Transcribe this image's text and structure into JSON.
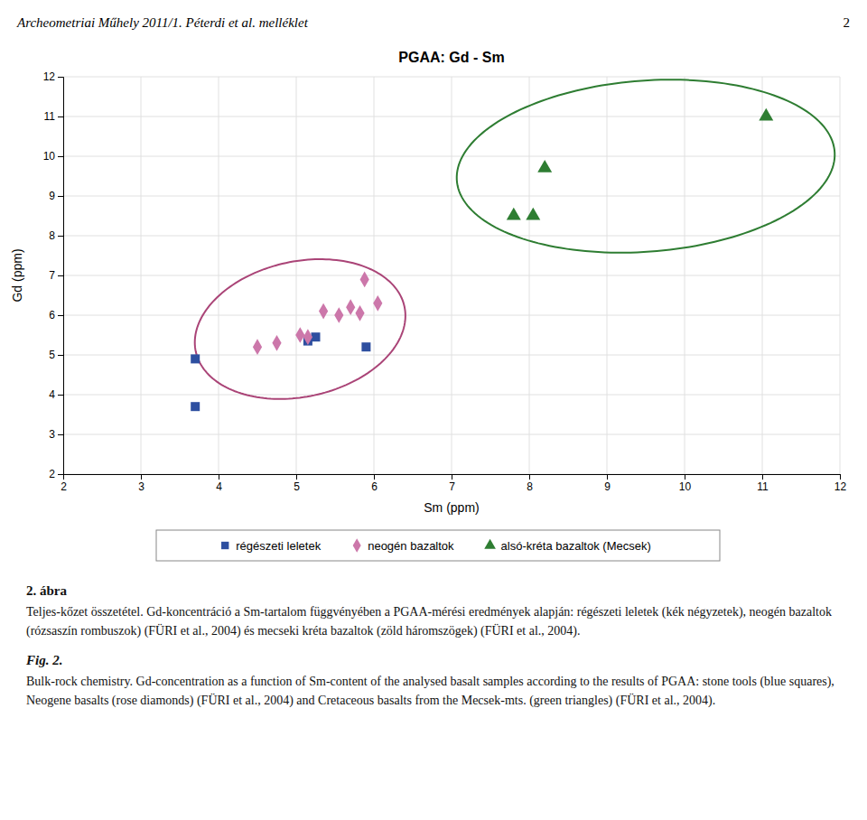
{
  "header_text": "Archeometriai Műhely 2011/1. Péterdi et al. melléklet",
  "header_right": "2",
  "caption_abra": "2. ábra",
  "caption_hungarian": "Teljes-kőzet összetétel. Gd-koncentráció a Sm-tartalom függvényében a PGAA-mérési eredmények alapján: régészeti leletek (kék négyzetek), neogén bazaltok (rózsaszín rombuszok) (FÜRI et al., 2004) és mecseki kréta bazaltok (zöld háromszögek) (FÜRI et al., 2004).",
  "caption_fig": "Fig. 2.",
  "caption_english": "Bulk-rock chemistry. Gd-concentration as a function of Sm-content of the analysed basalt samples according to the results of PGAA: stone tools (blue squares), Neogene basalts (rose diamonds) (FÜRI et al., 2004) and Cretaceous basalts from the Mecsek-mts. (green triangles) (FÜRI et al., 2004).",
  "chart_data": {
    "type": "scatter",
    "title": "PGAA: Gd - Sm",
    "x_label": "Sm (ppm)",
    "y_label": "Gd (ppm)",
    "xlim": [
      2,
      12
    ],
    "ylim": [
      2,
      12
    ],
    "xticks": [
      2,
      3,
      4,
      5,
      6,
      7,
      8,
      9,
      10,
      11,
      12
    ],
    "yticks": [
      2,
      3,
      4,
      5,
      6,
      7,
      8,
      9,
      10,
      11,
      12
    ],
    "grid": true,
    "legend": "bottom",
    "series": [
      {
        "name": "régészeti leletek",
        "color": "#2E4FA0",
        "marker": "square",
        "x": [
          3.7,
          3.7,
          5.15,
          5.25,
          5.9
        ],
        "values": [
          4.9,
          3.7,
          5.35,
          5.45,
          5.2
        ]
      },
      {
        "name": "neogén bazaltok",
        "color": "#CC77AA",
        "marker": "diamond",
        "x": [
          4.5,
          4.75,
          5.05,
          5.15,
          5.35,
          5.55,
          5.7,
          5.82,
          5.88,
          6.05
        ],
        "values": [
          5.2,
          5.3,
          5.5,
          5.45,
          6.1,
          6.0,
          6.2,
          6.05,
          6.9,
          6.3
        ]
      },
      {
        "name": "alsó-kréta bazaltok (Mecsek)",
        "color": "#2E7D32",
        "marker": "triangle",
        "x": [
          7.8,
          8.05,
          8.2,
          11.05
        ],
        "values": [
          8.5,
          8.5,
          9.7,
          11.0
        ]
      }
    ],
    "ellipses": [
      {
        "center": [
          5.05,
          5.65
        ],
        "width": 2.6,
        "height": 3.6,
        "angle": -18,
        "color": "#AA4477"
      },
      {
        "center": [
          9.5,
          9.75
        ],
        "width": 5.0,
        "height": 4.2,
        "angle": 25,
        "color": "#2E7D32"
      }
    ]
  }
}
